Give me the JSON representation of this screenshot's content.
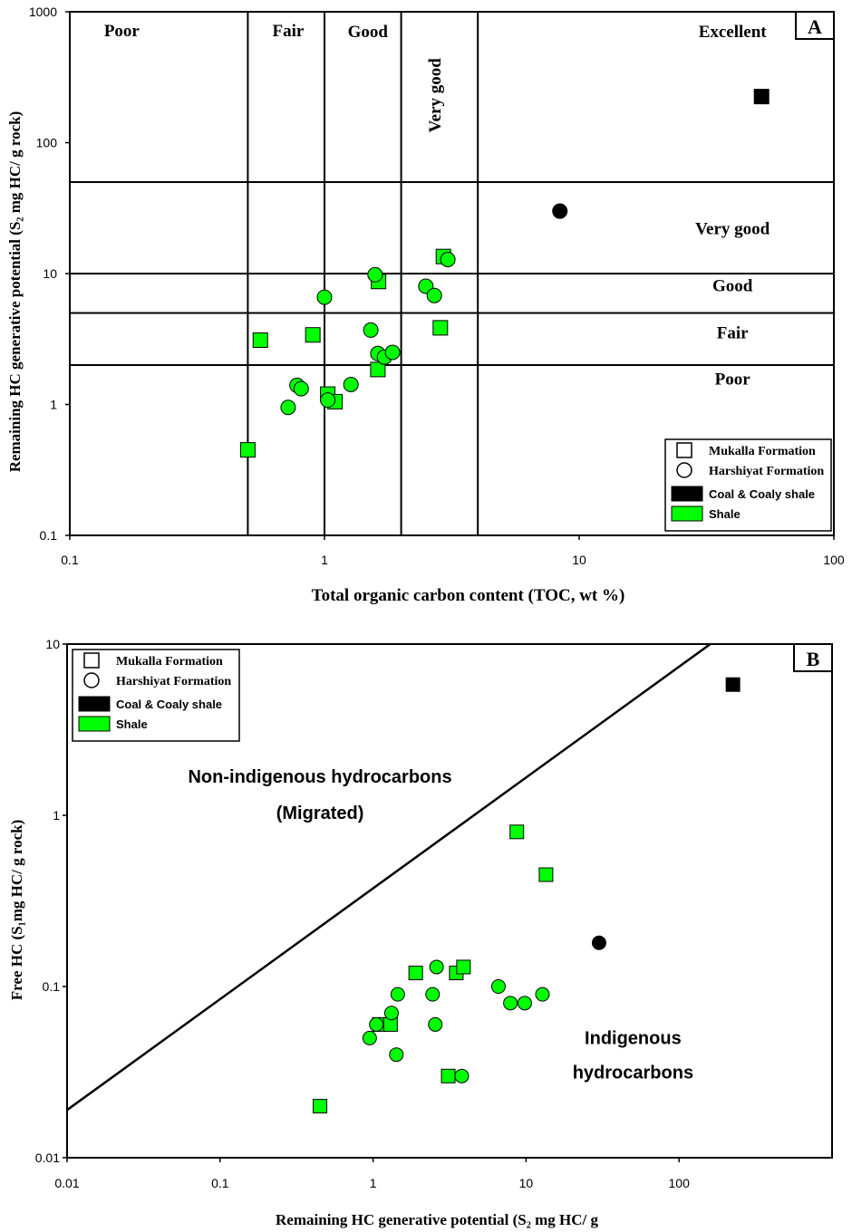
{
  "chart_data": [
    {
      "id": "A",
      "type": "scatter",
      "panel_label": "A",
      "xscale": "log",
      "yscale": "log",
      "xlim": [
        0.1,
        100
      ],
      "ylim": [
        0.1,
        1000
      ],
      "x_ticks": [
        0.1,
        1,
        10,
        100
      ],
      "x_tick_labels": [
        "0.1",
        "1",
        "10",
        "100"
      ],
      "y_ticks": [
        0.1,
        1,
        10,
        100,
        1000
      ],
      "y_tick_labels": [
        "0.1",
        "1",
        "10",
        "100",
        "1000"
      ],
      "xlabel": "Total organic carbon content (TOC, wt %)",
      "ylabel": "Remaining HC generative potential (S₂ mg HC/ g rock)",
      "grid": false,
      "vertical_dividers": [
        0.5,
        1,
        2,
        4
      ],
      "horizontal_dividers": [
        2,
        5,
        10,
        50
      ],
      "region_labels": [
        {
          "text": "Poor",
          "x": 0.16,
          "y": 650,
          "rotate": false
        },
        {
          "text": "Fair",
          "x": 0.72,
          "y": 650,
          "rotate": false
        },
        {
          "text": "Good",
          "x": 1.48,
          "y": 640,
          "rotate": false
        },
        {
          "text": "Very good",
          "x": 2.85,
          "y": 230,
          "rotate": true
        },
        {
          "text": "Excellent",
          "x": 40,
          "y": 640,
          "rotate": false
        },
        {
          "text": "Very good",
          "x": 40,
          "y": 20,
          "rotate": false
        },
        {
          "text": "Good",
          "x": 40,
          "y": 7.3,
          "rotate": false
        },
        {
          "text": "Fair",
          "x": 40,
          "y": 3.2,
          "rotate": false
        },
        {
          "text": "Poor",
          "x": 40,
          "y": 1.42,
          "rotate": false
        }
      ],
      "legend_position": "bottom-right",
      "series": [
        {
          "name": "Mukalla Formation",
          "formation": "Mukalla",
          "lithology": "Shale",
          "marker": "square",
          "color": "#00ff00",
          "points": [
            [
              0.5,
              0.45
            ],
            [
              0.56,
              3.1
            ],
            [
              0.9,
              3.4
            ],
            [
              1.03,
              1.2
            ],
            [
              1.1,
              1.05
            ],
            [
              1.63,
              8.7
            ],
            [
              1.62,
              1.85
            ],
            [
              2.85,
              3.85
            ],
            [
              2.93,
              13.5
            ]
          ]
        },
        {
          "name": "Harshiyat Formation",
          "formation": "Harshiyat",
          "lithology": "Shale",
          "marker": "circle",
          "color": "#00ff00",
          "points": [
            [
              0.72,
              0.95
            ],
            [
              0.78,
              1.4
            ],
            [
              0.81,
              1.32
            ],
            [
              1.0,
              6.6
            ],
            [
              1.03,
              1.08
            ],
            [
              1.27,
              1.42
            ],
            [
              1.52,
              3.7
            ],
            [
              1.58,
              9.8
            ],
            [
              1.62,
              2.45
            ],
            [
              1.72,
              2.3
            ],
            [
              1.85,
              2.5
            ],
            [
              2.5,
              8.0
            ],
            [
              2.7,
              6.8
            ],
            [
              3.05,
              12.8
            ]
          ]
        },
        {
          "name": "Mukalla Formation",
          "formation": "Mukalla",
          "lithology": "Coal & Coaly shale",
          "marker": "square",
          "color": "#000000",
          "points": [
            [
              52,
              225
            ]
          ]
        },
        {
          "name": "Harshiyat Formation",
          "formation": "Harshiyat",
          "lithology": "Coal & Coaly shale",
          "marker": "circle",
          "color": "#000000",
          "points": [
            [
              8.4,
              30
            ]
          ]
        }
      ]
    },
    {
      "id": "B",
      "type": "scatter",
      "panel_label": "B",
      "xscale": "log",
      "yscale": "log",
      "xlim": [
        0.01,
        1000
      ],
      "ylim": [
        0.01,
        10
      ],
      "x_ticks": [
        0.01,
        0.1,
        1,
        10,
        100
      ],
      "x_tick_labels": [
        "0.01",
        "0.1",
        "1",
        "10",
        "100"
      ],
      "y_ticks": [
        0.01,
        0.1,
        1,
        10
      ],
      "y_tick_labels": [
        "0.01",
        "0.1",
        "1",
        "10"
      ],
      "xlabel": "Remaining HC generative potential (S₂ mg HC/ g",
      "ylabel": "Free HC (S₁mg HC/ g rock)",
      "grid": false,
      "division_line": {
        "from": [
          0.01,
          0.019
        ],
        "to": [
          160,
          10
        ]
      },
      "region_labels": [
        {
          "text": "Non-indigenous hydrocarbons",
          "x": 0.45,
          "y": 1.55
        },
        {
          "text": "(Migrated)",
          "x": 0.45,
          "y": 0.95
        },
        {
          "text": "Indigenous",
          "x": 50,
          "y": 0.046
        },
        {
          "text": "hydrocarbons",
          "x": 50,
          "y": 0.029
        }
      ],
      "legend_position": "top-left",
      "series": [
        {
          "name": "Mukalla Formation",
          "formation": "Mukalla",
          "lithology": "Shale",
          "marker": "square",
          "color": "#00ff00",
          "points": [
            [
              0.45,
              0.02
            ],
            [
              1.1,
              0.06
            ],
            [
              1.3,
              0.06
            ],
            [
              1.9,
              0.12
            ],
            [
              3.1,
              0.03
            ],
            [
              3.5,
              0.12
            ],
            [
              3.9,
              0.13
            ],
            [
              8.7,
              0.8
            ],
            [
              13.5,
              0.45
            ]
          ]
        },
        {
          "name": "Harshiyat Formation",
          "formation": "Harshiyat",
          "lithology": "Shale",
          "marker": "circle",
          "color": "#00ff00",
          "points": [
            [
              0.95,
              0.05
            ],
            [
              1.05,
              0.06
            ],
            [
              1.32,
              0.07
            ],
            [
              1.42,
              0.04
            ],
            [
              1.45,
              0.09
            ],
            [
              2.45,
              0.09
            ],
            [
              2.55,
              0.06
            ],
            [
              2.6,
              0.13
            ],
            [
              3.8,
              0.03
            ],
            [
              6.6,
              0.1
            ],
            [
              7.9,
              0.08
            ],
            [
              9.8,
              0.08
            ],
            [
              12.8,
              0.09
            ]
          ]
        },
        {
          "name": "Mukalla Formation",
          "formation": "Mukalla",
          "lithology": "Coal & Coaly shale",
          "marker": "square",
          "color": "#000000",
          "points": [
            [
              225,
              5.8
            ]
          ]
        },
        {
          "name": "Harshiyat Formation",
          "formation": "Harshiyat",
          "lithology": "Coal & Coaly shale",
          "marker": "circle",
          "color": "#000000",
          "points": [
            [
              30,
              0.18
            ]
          ]
        }
      ]
    }
  ],
  "legend": {
    "entries": [
      {
        "label": "Mukalla Formation",
        "swatch": "square-outline",
        "font": "serif"
      },
      {
        "label": "Harshiyat Formation",
        "swatch": "circle-outline",
        "font": "serif"
      },
      {
        "label": "Coal & Coaly shale",
        "swatch": "fill",
        "color": "#000000",
        "font": "sans"
      },
      {
        "label": "Shale",
        "swatch": "fill",
        "color": "#00ff00",
        "font": "sans"
      }
    ]
  },
  "colors": {
    "shale": "#00ff00",
    "coal": "#000000",
    "axis": "#000000"
  }
}
